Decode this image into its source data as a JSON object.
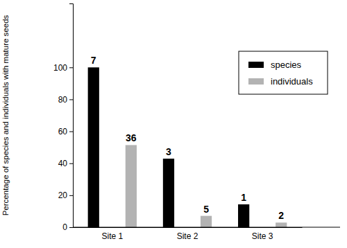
{
  "chart_data": {
    "type": "bar",
    "y_label": "Percentage of species and individuals with mature seeds",
    "categories": [
      "Site 1",
      "Site 2",
      "Site 3"
    ],
    "series": [
      {
        "name": "species",
        "color": "#000000",
        "values": [
          100,
          42.9,
          14.3
        ],
        "counts": [
          7,
          3,
          1
        ]
      },
      {
        "name": "individuals",
        "color": "#b3b3b3",
        "values": [
          51.4,
          7.1,
          2.9
        ],
        "counts": [
          36,
          5,
          2
        ]
      }
    ],
    "ylim": [
      0,
      140
    ],
    "yticks": [
      0,
      20,
      40,
      60,
      80,
      100
    ],
    "grid": false,
    "legend": "upper right"
  }
}
